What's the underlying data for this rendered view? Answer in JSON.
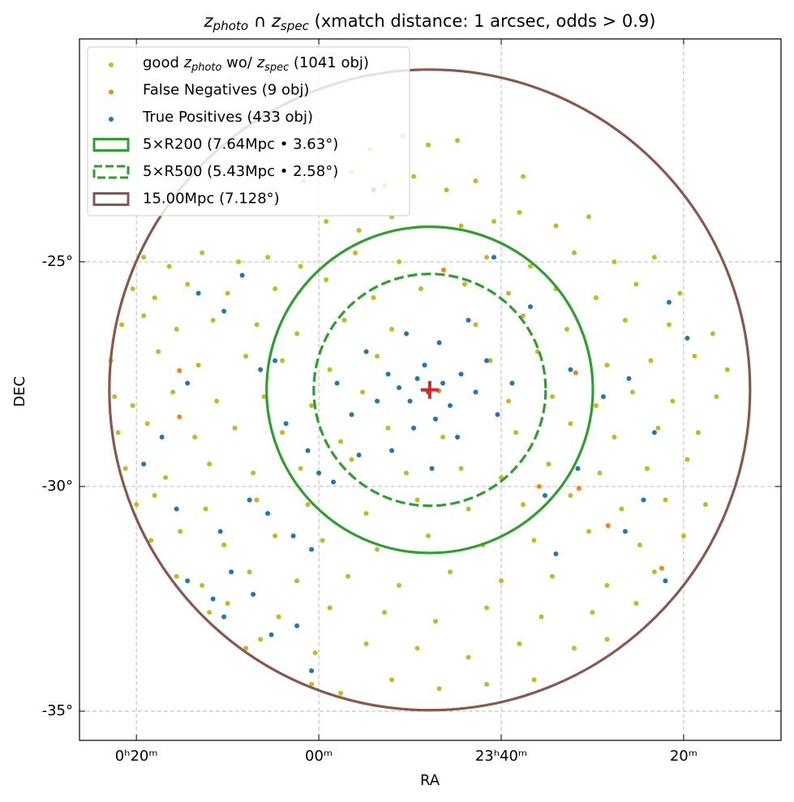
{
  "chart_data": {
    "type": "scatter",
    "title": [
      "z",
      "photo",
      " ∩ ",
      "z",
      "spec",
      " (xmatch distance: 1 arcsec, odds > 0.9)"
    ],
    "xlabel": "RA",
    "ylabel": "DEC",
    "xlim": [
      6.56,
      -12.67
    ],
    "ylim": [
      -35.65,
      -20.04
    ],
    "xticks": [
      {
        "value": 5,
        "label": "0ʰ20ᵐ"
      },
      {
        "value": 0,
        "label": "00ᵐ"
      },
      {
        "value": -5,
        "label": "23ʰ40ᵐ"
      },
      {
        "value": -10,
        "label": "20ᵐ"
      }
    ],
    "yticks": [
      {
        "value": -25,
        "label": "-25°"
      },
      {
        "value": -30,
        "label": "-30°"
      },
      {
        "value": -35,
        "label": "-35°"
      }
    ],
    "grid": true,
    "legend": "upper left",
    "series": [
      {
        "name": [
          "good ",
          "z",
          "photo",
          " wo/ ",
          "z",
          "spec",
          " (1041 obj)"
        ],
        "color": "#bcbd22",
        "x": [
          -0.5,
          -1.4,
          -2.3,
          -3.0,
          -3.8,
          0.4,
          -0.9,
          -1.8,
          -2.6,
          -3.5,
          -4.3,
          -5.6,
          -0.2,
          -1.1,
          -2.0,
          -3.9,
          -4.8,
          -5.5,
          -6.5,
          -7.4,
          4.8,
          4.1,
          3.2,
          2.2,
          1.4,
          0.5,
          -1.0,
          -2.2,
          -4.6,
          -5.8,
          -7.0,
          -8.1,
          -9.2,
          5.1,
          4.5,
          3.6,
          2.5,
          1.2,
          -0.2,
          -1.5,
          -2.8,
          -4.0,
          -5.2,
          -6.5,
          -7.6,
          -8.7,
          -9.9,
          5.4,
          4.8,
          3.9,
          2.9,
          1.7,
          0.6,
          -0.7,
          -2.0,
          -4.3,
          -5.6,
          -6.8,
          -8.4,
          -9.6,
          -10.8,
          5.7,
          4.4,
          3.3,
          2.0,
          1.0,
          -0.3,
          -1.6,
          -4.7,
          -6.0,
          -7.9,
          -9.1,
          -10.3,
          -11.2,
          5.6,
          5.1,
          4.0,
          2.8,
          1.5,
          0.2,
          -1.2,
          -5.2,
          -6.4,
          -7.6,
          -8.6,
          -9.7,
          -10.9,
          5.5,
          4.7,
          3.4,
          2.3,
          1.0,
          -0.6,
          -1.9,
          -3.4,
          -5.4,
          -6.9,
          -8.1,
          -9.3,
          -10.4,
          5.3,
          4.2,
          3.0,
          1.8,
          0.5,
          -0.9,
          -2.4,
          -3.9,
          -5.0,
          -6.3,
          -7.7,
          -9.0,
          -10.1,
          5.0,
          4.5,
          3.1,
          1.7,
          0.3,
          -1.3,
          -2.7,
          -4.1,
          -5.6,
          -6.9,
          -8.3,
          -9.5,
          -10.6,
          4.6,
          3.8,
          2.6,
          1.2,
          -0.1,
          -1.6,
          -3.0,
          -4.5,
          -5.9,
          -7.4,
          -8.8,
          -10.0,
          3.9,
          3.2,
          1.9,
          0.6,
          -0.8,
          -2.2,
          -3.6,
          -5.0,
          -6.4,
          -7.9,
          -9.2,
          3.0,
          2.5,
          1.1,
          -0.3,
          -1.8,
          -3.2,
          -4.6,
          -6.1,
          -7.5,
          -8.7,
          2.0,
          1.6,
          0.1,
          -1.3,
          -2.7,
          -4.1,
          -5.5,
          -7.0,
          -7.9,
          0.2,
          -0.6,
          -2.0,
          -3.3,
          -4.6,
          -5.9
        ],
        "values": [
          -22.3,
          -22.5,
          -22.2,
          -22.4,
          -22.3,
          -23.2,
          -23.0,
          -23.3,
          -23.1,
          -23.4,
          -23.2,
          -23.1,
          -24.1,
          -24.3,
          -24.0,
          -24.2,
          -24.1,
          -23.9,
          -24.2,
          -24.0,
          -24.9,
          -25.1,
          -24.8,
          -25.0,
          -24.9,
          -25.1,
          -24.8,
          -25.0,
          -24.9,
          -25.1,
          -24.8,
          -25.0,
          -24.9,
          -25.6,
          -25.8,
          -25.5,
          -25.7,
          -25.6,
          -25.4,
          -25.8,
          -25.6,
          -25.5,
          -25.7,
          -25.6,
          -25.8,
          -25.5,
          -25.7,
          -26.4,
          -26.2,
          -26.5,
          -26.3,
          -26.4,
          -26.6,
          -26.3,
          -26.5,
          -26.4,
          -26.2,
          -26.5,
          -26.3,
          -26.4,
          -26.6,
          -27.2,
          -27.0,
          -27.3,
          -27.1,
          -27.2,
          -27.4,
          -27.1,
          -27.2,
          -27.0,
          -27.3,
          -27.2,
          -27.1,
          -27.4,
          -28.0,
          -28.2,
          -27.9,
          -28.1,
          -28.0,
          -28.2,
          -27.9,
          -28.1,
          -28.0,
          -28.2,
          -27.9,
          -28.1,
          -28.0,
          -28.8,
          -28.6,
          -28.9,
          -28.7,
          -28.8,
          -29.0,
          -28.7,
          -28.9,
          -28.8,
          -28.6,
          -28.9,
          -28.7,
          -28.8,
          -29.6,
          -29.8,
          -29.5,
          -29.7,
          -29.6,
          -29.4,
          -29.7,
          -29.6,
          -29.8,
          -29.5,
          -29.7,
          -29.6,
          -29.4,
          -30.4,
          -30.2,
          -30.5,
          -30.3,
          -30.4,
          -30.6,
          -30.3,
          -30.5,
          -30.4,
          -30.2,
          -30.5,
          -30.3,
          -30.4,
          -31.2,
          -31.0,
          -31.3,
          -31.1,
          -31.2,
          -31.4,
          -31.1,
          -31.3,
          -31.2,
          -31.0,
          -31.3,
          -31.1,
          -32.0,
          -32.2,
          -31.9,
          -32.1,
          -32.0,
          -32.2,
          -31.9,
          -32.1,
          -32.0,
          -32.2,
          -31.9,
          -32.8,
          -32.6,
          -32.9,
          -32.7,
          -32.8,
          -33.0,
          -32.7,
          -32.9,
          -32.8,
          -32.6,
          -33.6,
          -33.4,
          -33.7,
          -33.5,
          -33.6,
          -33.8,
          -33.5,
          -33.6,
          -33.4,
          -34.4,
          -34.6,
          -34.3,
          -34.5,
          -34.4,
          -34.3
        ]
      },
      {
        "name": "False Negatives (9 obj)",
        "color": "#ff7f0e",
        "x": [
          3.82,
          3.82,
          -3.42,
          -7.04,
          -6.04,
          -7.13,
          -7.93,
          -9.4,
          -3.29
        ],
        "values": [
          -27.42,
          -28.45,
          -25.18,
          -27.47,
          -30.0,
          -30.04,
          -30.87,
          -31.82,
          -27.87
        ]
      },
      {
        "name": "True Positives (433 obj)",
        "color": "#1f77b4",
        "x": [
          -3.0,
          -2.7,
          -3.4,
          -2.5,
          -3.6,
          -2.9,
          -3.9,
          -2.2,
          -3.2,
          -1.9,
          -4.3,
          -2.6,
          -3.8,
          -1.6,
          -4.6,
          -2.0,
          -3.3,
          -1.3,
          -4.9,
          -2.4,
          -0.9,
          -5.3,
          -3.1,
          -1.1,
          -4.1,
          -0.5,
          1.2,
          1.6,
          0.9,
          0.3,
          0.0,
          -0.4,
          1.9,
          1.4,
          0.7,
          0.2,
          2.4,
          1.8,
          2.9,
          1.3,
          0.6,
          2.6,
          3.6,
          3.9,
          2.7,
          4.8,
          3.6,
          4.3,
          2.6,
          2.1,
          3.3,
          0.2,
          -6.9,
          -7.8,
          -8.5,
          -9.2,
          -10.1,
          -9.6,
          -7.1,
          -8.4,
          -6.2,
          -9.5,
          -5.8,
          -4.8,
          -1.5,
          -6.5,
          -8.9
        ],
        "values": [
          -27.9,
          -27.6,
          -27.7,
          -28.1,
          -28.2,
          -27.3,
          -27.5,
          -27.8,
          -28.5,
          -27.5,
          -27.9,
          -28.7,
          -28.9,
          -28.1,
          -27.2,
          -29.2,
          -26.8,
          -27.0,
          -28.4,
          -26.6,
          -28.4,
          -27.7,
          -29.6,
          -29.3,
          -26.3,
          -27.7,
          -27.2,
          -27.4,
          -28.6,
          -29.2,
          -29.7,
          -29.9,
          -30.3,
          -30.6,
          -31.1,
          -31.4,
          -31.9,
          -32.4,
          -32.5,
          -33.3,
          -33.1,
          -32.9,
          -32.1,
          -30.5,
          -31.0,
          -29.5,
          -27.7,
          -28.9,
          -26.1,
          -25.3,
          -25.7,
          -34.1,
          -27.4,
          -28.0,
          -27.6,
          -28.8,
          -26.7,
          -25.9,
          -29.6,
          -31.0,
          -30.2,
          -32.1,
          -26.0,
          -24.9,
          -23.4,
          -31.5,
          -30.3
        ]
      }
    ],
    "circles": [
      {
        "name": "5×R200 (7.64Mpc • 3.63°)",
        "radius": 3.63,
        "color": "#2ca02c",
        "dashed": false
      },
      {
        "name": "5×R500 (5.43Mpc • 2.58°)",
        "radius": 2.58,
        "color": "#2ca02c",
        "dashed": true
      },
      {
        "name": "15.00Mpc (7.128°)",
        "radius": 7.128,
        "color": "#8c564b",
        "dashed": false
      }
    ],
    "center": {
      "x": -3.04,
      "y": -27.85,
      "color": "#d62728"
    }
  }
}
